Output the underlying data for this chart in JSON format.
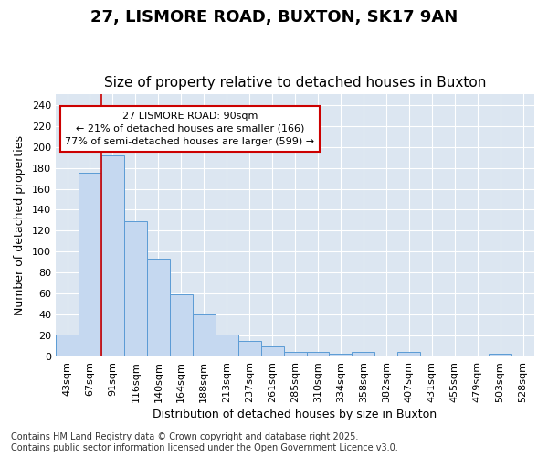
{
  "title": "27, LISMORE ROAD, BUXTON, SK17 9AN",
  "subtitle": "Size of property relative to detached houses in Buxton",
  "xlabel": "Distribution of detached houses by size in Buxton",
  "ylabel": "Number of detached properties",
  "categories": [
    "43sqm",
    "67sqm",
    "91sqm",
    "116sqm",
    "140sqm",
    "164sqm",
    "188sqm",
    "213sqm",
    "237sqm",
    "261sqm",
    "285sqm",
    "310sqm",
    "334sqm",
    "358sqm",
    "382sqm",
    "407sqm",
    "431sqm",
    "455sqm",
    "479sqm",
    "503sqm",
    "528sqm"
  ],
  "values": [
    21,
    175,
    192,
    129,
    93,
    59,
    40,
    21,
    15,
    10,
    4,
    4,
    3,
    4,
    0,
    4,
    0,
    0,
    0,
    3,
    0
  ],
  "bar_color": "#c5d8f0",
  "bar_edge_color": "#5b9bd5",
  "vline_x_index": 2,
  "vline_color": "#cc0000",
  "annotation_text": "27 LISMORE ROAD: 90sqm\n← 21% of detached houses are smaller (166)\n77% of semi-detached houses are larger (599) →",
  "annotation_box_edgecolor": "#cc0000",
  "annotation_box_facecolor": "#ffffff",
  "ylim": [
    0,
    250
  ],
  "yticks": [
    0,
    20,
    40,
    60,
    80,
    100,
    120,
    140,
    160,
    180,
    200,
    220,
    240
  ],
  "figure_bg": "#ffffff",
  "plot_bg": "#dce6f1",
  "grid_color": "#ffffff",
  "footer": "Contains HM Land Registry data © Crown copyright and database right 2025.\nContains public sector information licensed under the Open Government Licence v3.0.",
  "title_fontsize": 13,
  "subtitle_fontsize": 11,
  "label_fontsize": 9,
  "tick_fontsize": 8,
  "annotation_fontsize": 8,
  "footer_fontsize": 7
}
